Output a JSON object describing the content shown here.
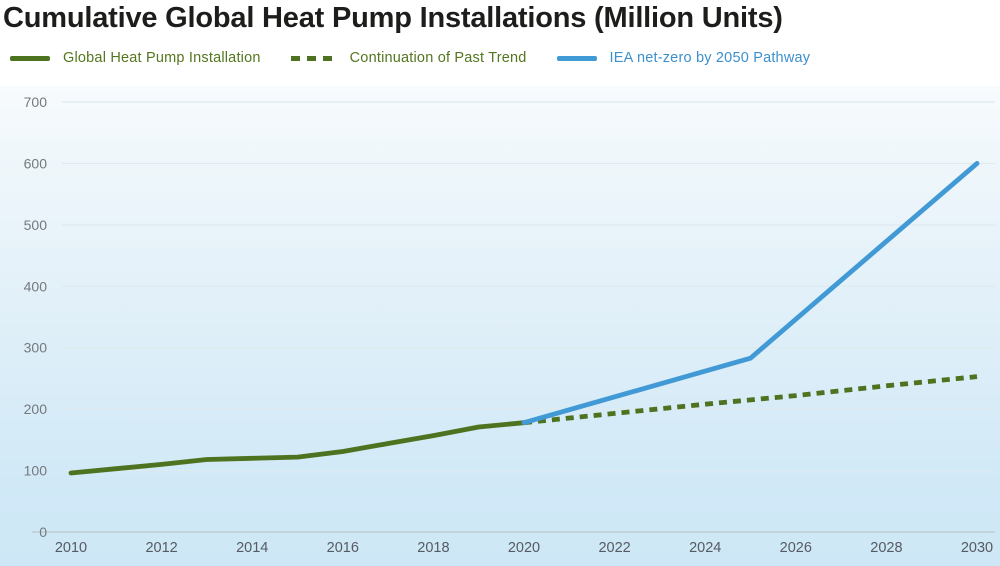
{
  "title": "Cumulative Global Heat Pump Installations (Million Units)",
  "legend": [
    {
      "label": "Global Heat Pump Installation",
      "color": "#4e7320",
      "style": "solid"
    },
    {
      "label": "Continuation of Past Trend",
      "color": "#4e7320",
      "style": "dashed"
    },
    {
      "label": "IEA net-zero by 2050 Pathway",
      "color": "#4199d6",
      "style": "solid"
    }
  ],
  "colors": {
    "title": "#1d1d1b",
    "grid": "#dfe9ee",
    "axis_line": "#c0ccd4",
    "ytick_label": "#75797e",
    "xtick_label": "#565b61",
    "green": "#4e7320",
    "blue": "#4199d6",
    "bg_top": "#f7fbfd",
    "bg_bottom": "#cde7f6"
  },
  "chart_data": {
    "type": "line",
    "title": "Cumulative Global Heat Pump Installations (Million Units)",
    "xlabel": "",
    "ylabel": "",
    "xlim": [
      2010,
      2030
    ],
    "ylim": [
      0,
      700
    ],
    "xticks": [
      2010,
      2012,
      2014,
      2016,
      2018,
      2020,
      2022,
      2024,
      2026,
      2028,
      2030
    ],
    "yticks": [
      0,
      100,
      200,
      300,
      400,
      500,
      600,
      700
    ],
    "grid": true,
    "legend_position": "top-left",
    "series": [
      {
        "name": "Global Heat Pump Installation",
        "color": "#4e7320",
        "dash": "solid",
        "x": [
          2010,
          2011,
          2012,
          2013,
          2014,
          2015,
          2016,
          2017,
          2018,
          2019,
          2020
        ],
        "y": [
          96,
          103,
          110,
          118,
          120,
          122,
          131,
          144,
          157,
          171,
          178
        ]
      },
      {
        "name": "Continuation of Past Trend",
        "color": "#4e7320",
        "dash": "dashed",
        "x": [
          2020,
          2022,
          2024,
          2026,
          2028,
          2030
        ],
        "y": [
          178,
          193,
          208,
          222,
          238,
          253
        ]
      },
      {
        "name": "IEA net-zero by 2050 Pathway",
        "color": "#4199d6",
        "dash": "solid",
        "x": [
          2020,
          2025,
          2030
        ],
        "y": [
          178,
          283,
          600
        ]
      }
    ]
  }
}
